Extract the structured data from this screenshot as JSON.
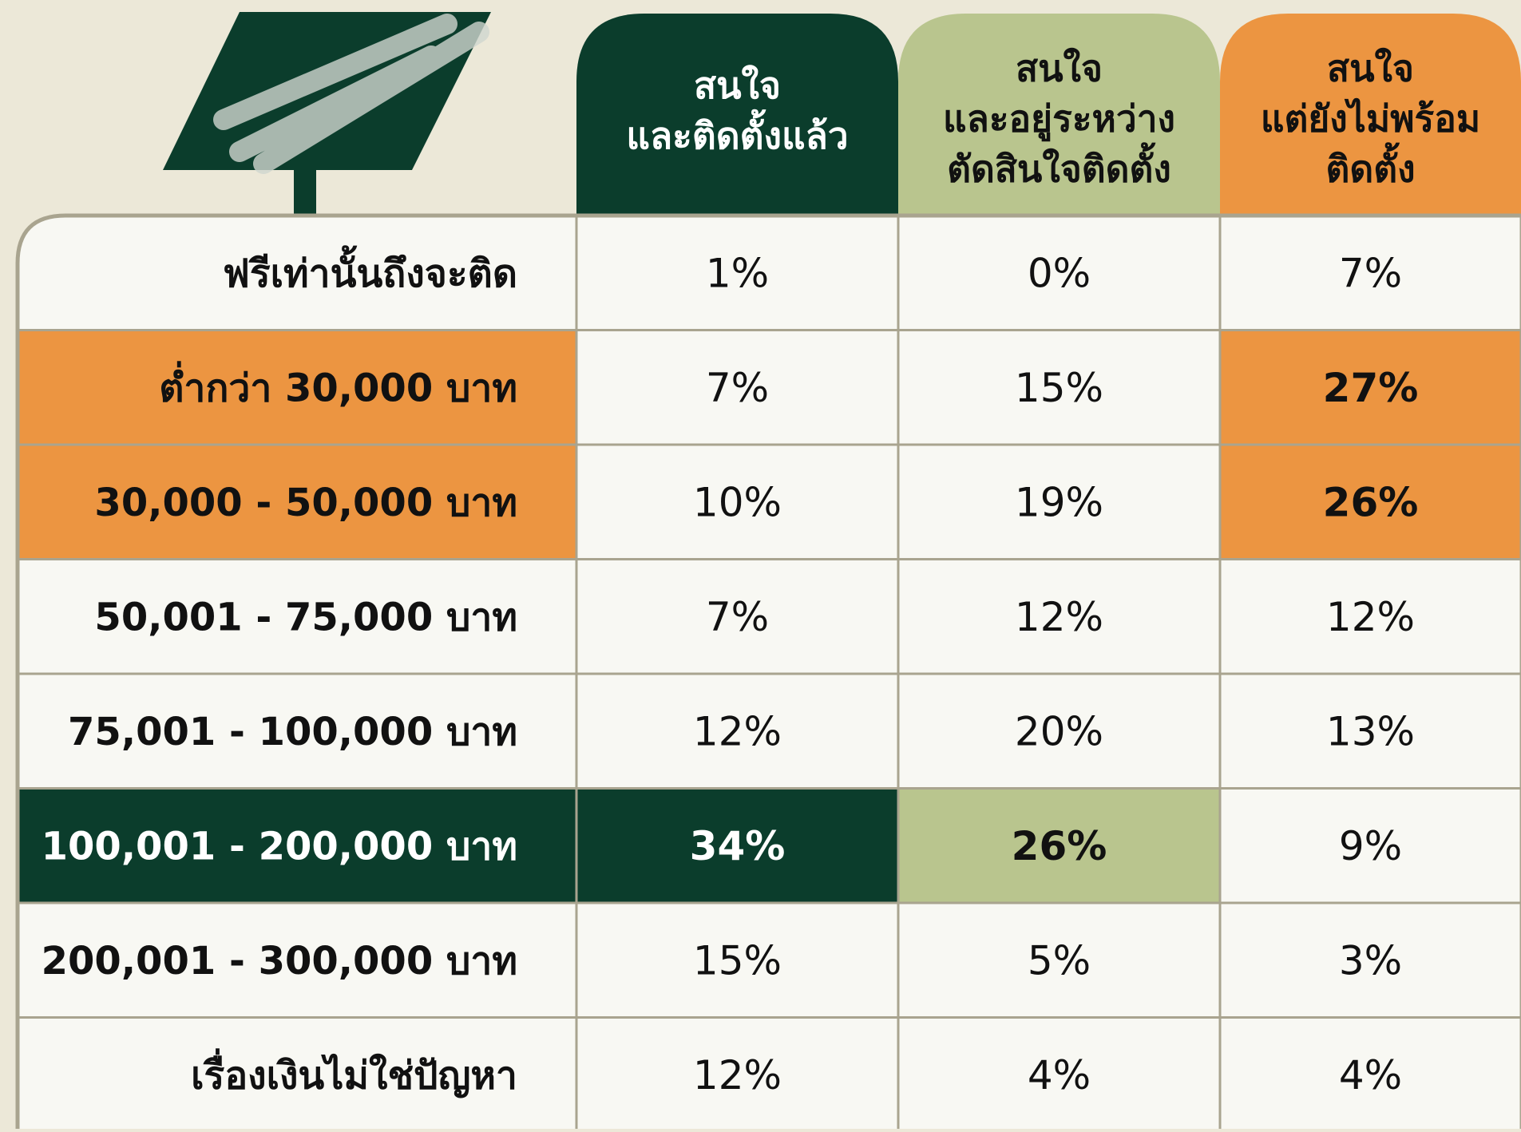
{
  "table": {
    "columns": [
      [
        "สนใจ",
        "และติดตั้งแล้ว"
      ],
      [
        "สนใจ",
        "และอยู่ระหว่าง",
        "ตัดสินใจติดตั้ง"
      ],
      [
        "สนใจ",
        "แต่ยังไม่พร้อม",
        "ติดตั้ง"
      ]
    ],
    "rows": [
      {
        "label": "ฟรีเท่านั้นถึงจะติด",
        "cells": [
          "1%",
          "0%",
          "7%"
        ]
      },
      {
        "label": "ต่ำกว่า 30,000 บาท",
        "cells": [
          "7%",
          "15%",
          "27%"
        ]
      },
      {
        "label": "30,000 - 50,000 บาท",
        "cells": [
          "10%",
          "19%",
          "26%"
        ]
      },
      {
        "label": "50,001 - 75,000 บาท",
        "cells": [
          "7%",
          "12%",
          "12%"
        ]
      },
      {
        "label": "75,001 - 100,000 บาท",
        "cells": [
          "12%",
          "20%",
          "13%"
        ]
      },
      {
        "label": "100,001 - 200,000 บาท",
        "cells": [
          "34%",
          "26%",
          "9%"
        ]
      },
      {
        "label": "200,001 - 300,000 บาท",
        "cells": [
          "15%",
          "5%",
          "3%"
        ]
      },
      {
        "label": "เรื่องเงินไม่ใช่ปัญหา",
        "cells": [
          "12%",
          "4%",
          "4%"
        ]
      }
    ]
  }
}
